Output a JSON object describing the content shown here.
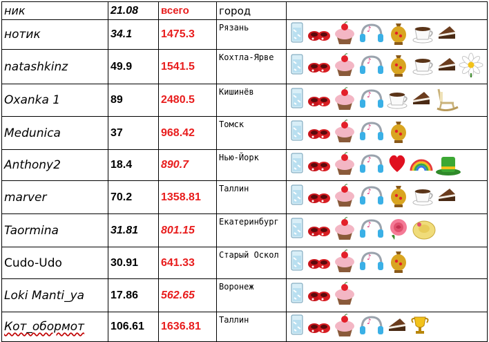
{
  "header": {
    "nick": "ник",
    "date": "21.08",
    "total": "всего",
    "city": "город"
  },
  "rows": [
    {
      "nick": "нотик",
      "day": "34.1",
      "total": "1475.3",
      "city": "Рязань",
      "gifts": [
        "glass-icon",
        "red-shoes-icon",
        "cupcake-icon",
        "headphones-icon",
        "samovar-icon",
        "coffee-cup-icon",
        "cake-slice-icon"
      ]
    },
    {
      "nick": "natashkinz",
      "day": "49.9",
      "total": "1541.5",
      "city": "Кохтла-Ярве",
      "gifts": [
        "glass-icon",
        "red-shoes-icon",
        "cupcake-icon",
        "headphones-icon",
        "samovar-icon",
        "coffee-cup-icon",
        "cake-slice-icon",
        "daisy-icon"
      ]
    },
    {
      "nick": "Oxanka 1",
      "day": "89",
      "total": "2480.5",
      "city": "Кишинёв",
      "gifts": [
        "glass-icon",
        "red-shoes-icon",
        "cupcake-icon",
        "headphones-icon",
        "coffee-cup-icon",
        "cake-slice-icon",
        "rocking-chair-icon"
      ]
    },
    {
      "nick": "Medunica",
      "day": "37",
      "total": "968.42",
      "city": "Томск",
      "gifts": [
        "glass-icon",
        "red-shoes-icon",
        "cupcake-icon",
        "headphones-icon",
        "samovar-icon"
      ]
    },
    {
      "nick": "Anthony2",
      "day": "18.4",
      "total": "890.7",
      "city": "Нью-Йорк",
      "gifts": [
        "glass-icon",
        "red-shoes-icon",
        "cupcake-icon",
        "headphones-icon",
        "heart-icon",
        "rainbow-icon",
        "green-hat-icon"
      ]
    },
    {
      "nick": "marver",
      "day": "70.2",
      "total": "1358.81",
      "city": "Таллин",
      "gifts": [
        "glass-icon",
        "red-shoes-icon",
        "cupcake-icon",
        "headphones-icon",
        "samovar-icon",
        "coffee-cup-icon",
        "cake-slice-icon"
      ]
    },
    {
      "nick": "Taormina",
      "day": "31.81",
      "total": "801.15",
      "city": "Екатеринбург",
      "gifts": [
        "glass-icon",
        "red-shoes-icon",
        "cupcake-icon",
        "headphones-icon",
        "rose-icon",
        "sun-hat-icon"
      ]
    },
    {
      "nick": "Cudo-Udo",
      "day": "30.91",
      "total": "641.33",
      "city": "Старый Оскол",
      "gifts": [
        "glass-icon",
        "red-shoes-icon",
        "cupcake-icon",
        "headphones-icon",
        "samovar-icon"
      ]
    },
    {
      "nick": "Loki Manti_ya",
      "day": "17.86",
      "total": "562.65",
      "city": "Воронеж",
      "gifts": [
        "glass-icon",
        "red-shoes-icon",
        "cupcake-icon"
      ]
    },
    {
      "nick": "Кот_обормот",
      "day": "106.61",
      "total": "1636.81",
      "city": "Таллин",
      "gifts": [
        "glass-icon",
        "red-shoes-icon",
        "cupcake-icon",
        "headphones-icon",
        "cake-slice-icon",
        "trophy-icon"
      ]
    }
  ]
}
